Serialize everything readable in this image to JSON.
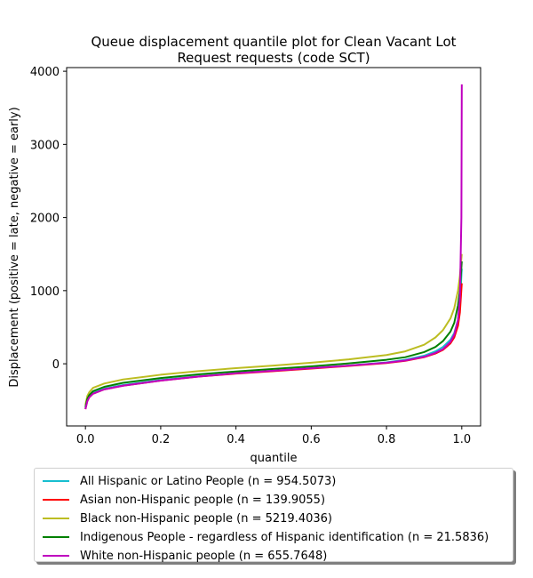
{
  "chart_data": {
    "type": "line",
    "title": "Queue displacement quantile plot for Clean Vacant Lot\nRequest  requests (code SCT)",
    "xlabel": "quantile",
    "ylabel": "Displacement (positive = late, negative = early)",
    "xlim": [
      -0.05,
      1.05
    ],
    "ylim": [
      -850,
      4050
    ],
    "xticks": [
      0.0,
      0.2,
      0.4,
      0.6,
      0.8,
      1.0
    ],
    "xtick_labels": [
      "0.0",
      "0.2",
      "0.4",
      "0.6",
      "0.8",
      "1.0"
    ],
    "yticks": [
      0,
      1000,
      2000,
      3000,
      4000
    ],
    "ytick_labels": [
      "0",
      "1000",
      "2000",
      "3000",
      "4000"
    ],
    "grid": false,
    "legend_position": "below the plot",
    "series": [
      {
        "name": "All Hispanic or Latino People (n = 954.5073)",
        "color": "#17becf",
        "x": [
          0.0,
          0.005,
          0.01,
          0.02,
          0.05,
          0.1,
          0.2,
          0.3,
          0.4,
          0.5,
          0.6,
          0.7,
          0.8,
          0.85,
          0.9,
          0.93,
          0.95,
          0.97,
          0.98,
          0.99,
          0.995,
          1.0
        ],
        "y": [
          -610,
          -500,
          -450,
          -400,
          -340,
          -290,
          -220,
          -170,
          -130,
          -95,
          -60,
          -25,
          20,
          55,
          110,
          170,
          230,
          330,
          420,
          600,
          800,
          1300
        ]
      },
      {
        "name": "Asian non-Hispanic people (n = 139.9055)",
        "color": "#ff0000",
        "x": [
          0.0,
          0.005,
          0.01,
          0.02,
          0.05,
          0.1,
          0.2,
          0.3,
          0.4,
          0.5,
          0.6,
          0.7,
          0.8,
          0.85,
          0.9,
          0.93,
          0.95,
          0.97,
          0.98,
          0.99,
          0.995,
          1.0
        ],
        "y": [
          -620,
          -510,
          -460,
          -410,
          -350,
          -300,
          -230,
          -175,
          -135,
          -100,
          -65,
          -30,
          10,
          40,
          90,
          140,
          190,
          280,
          360,
          520,
          700,
          1100
        ]
      },
      {
        "name": "Black non-Hispanic people (n = 5219.4036)",
        "color": "#bcbd22",
        "x": [
          0.0,
          0.005,
          0.01,
          0.02,
          0.05,
          0.1,
          0.2,
          0.3,
          0.4,
          0.5,
          0.6,
          0.7,
          0.8,
          0.85,
          0.9,
          0.93,
          0.95,
          0.97,
          0.98,
          0.99,
          0.995,
          1.0
        ],
        "y": [
          -560,
          -440,
          -390,
          -330,
          -270,
          -215,
          -150,
          -100,
          -60,
          -25,
          15,
          60,
          120,
          170,
          260,
          360,
          460,
          620,
          760,
          1000,
          1200,
          1500
        ]
      },
      {
        "name": "Indigenous People - regardless of Hispanic identification (n = 21.5836)",
        "color": "#008000",
        "x": [
          0.0,
          0.005,
          0.01,
          0.02,
          0.05,
          0.1,
          0.2,
          0.3,
          0.4,
          0.5,
          0.6,
          0.7,
          0.8,
          0.85,
          0.9,
          0.93,
          0.95,
          0.97,
          0.98,
          0.99,
          0.995,
          1.0
        ],
        "y": [
          -590,
          -480,
          -430,
          -375,
          -315,
          -260,
          -195,
          -145,
          -105,
          -70,
          -35,
          5,
          55,
          90,
          160,
          230,
          310,
          440,
          560,
          800,
          1000,
          1400
        ]
      },
      {
        "name": "White non-Hispanic people (n = 655.7648)",
        "color": "#bf00bf",
        "x": [
          0.0,
          0.005,
          0.01,
          0.02,
          0.05,
          0.1,
          0.2,
          0.3,
          0.4,
          0.5,
          0.6,
          0.7,
          0.8,
          0.85,
          0.9,
          0.93,
          0.95,
          0.97,
          0.98,
          0.99,
          0.995,
          0.999,
          1.0
        ],
        "y": [
          -620,
          -510,
          -460,
          -410,
          -350,
          -300,
          -230,
          -175,
          -130,
          -95,
          -60,
          -25,
          15,
          45,
          95,
          150,
          200,
          300,
          400,
          600,
          900,
          2000,
          3820
        ]
      }
    ]
  }
}
